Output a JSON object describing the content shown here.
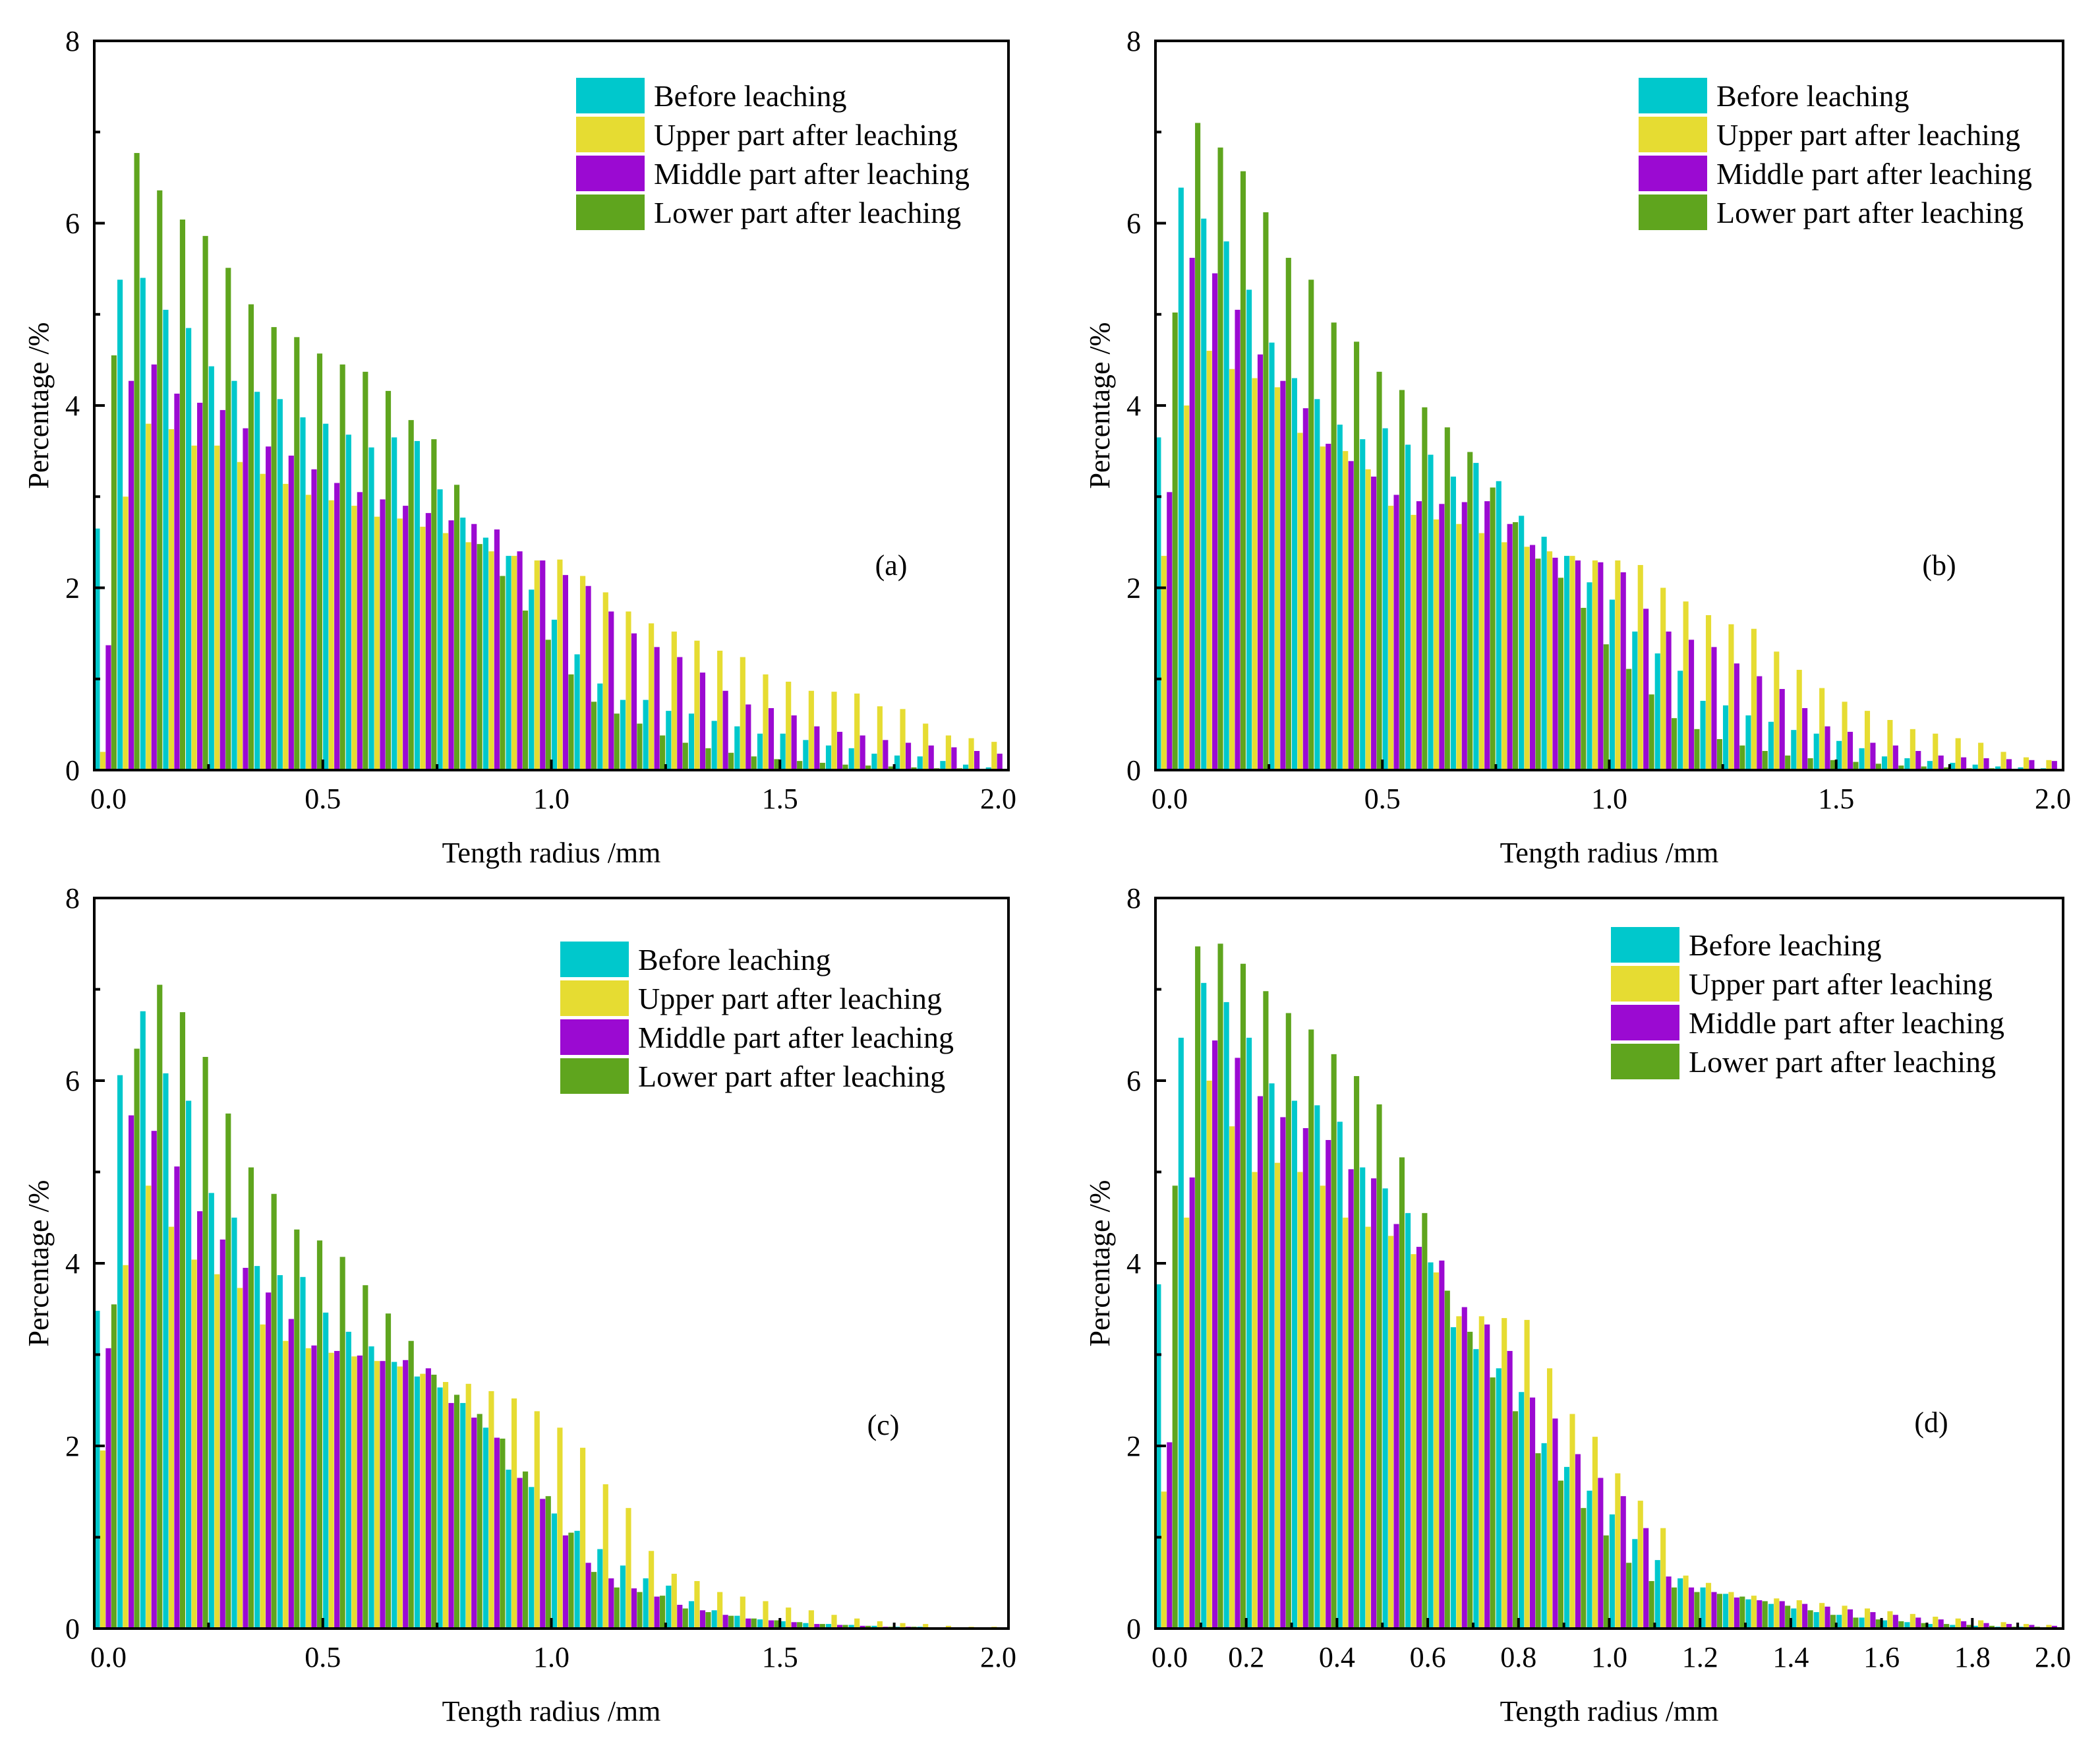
{
  "figure": {
    "colors": {
      "before": "#00c8cc",
      "upper": "#e6dc32",
      "middle": "#9b0ad2",
      "lower": "#5fa51e"
    }
  },
  "chart_data": [
    {
      "type": "bar",
      "panel_label": "(a)",
      "xlabel": "Tength radius /mm",
      "ylabel": "Percentage /%",
      "xlim": [
        0.0,
        2.0
      ],
      "ylim": [
        0,
        8
      ],
      "x_ticks": [
        "0.0",
        "0.5",
        "1.0",
        "1.5",
        "2.0"
      ],
      "y_ticks": [
        "0",
        "2",
        "4",
        "6",
        "8"
      ],
      "legend_position": "top-right",
      "bin_centers": [
        0.025,
        0.075,
        0.125,
        0.175,
        0.225,
        0.275,
        0.325,
        0.375,
        0.425,
        0.475,
        0.525,
        0.575,
        0.625,
        0.675,
        0.725,
        0.775,
        0.825,
        0.875,
        0.925,
        0.975,
        1.025,
        1.075,
        1.125,
        1.175,
        1.225,
        1.275,
        1.325,
        1.375,
        1.425,
        1.475,
        1.525,
        1.575,
        1.625,
        1.675,
        1.725,
        1.775,
        1.825,
        1.875,
        1.925,
        1.975
      ],
      "series": [
        {
          "name": "Before leaching",
          "color_key": "before",
          "values": [
            2.65,
            5.38,
            5.4,
            5.05,
            4.85,
            4.43,
            4.27,
            4.15,
            4.07,
            3.87,
            3.8,
            3.68,
            3.54,
            3.65,
            3.61,
            3.08,
            2.77,
            2.55,
            2.35,
            1.98,
            1.65,
            1.27,
            0.95,
            0.77,
            0.77,
            0.65,
            0.62,
            0.54,
            0.48,
            0.4,
            0.4,
            0.33,
            0.27,
            0.24,
            0.18,
            0.16,
            0.15,
            0.1,
            0.06,
            0.03
          ]
        },
        {
          "name": "Upper part after leaching",
          "color_key": "upper",
          "values": [
            0.2,
            3.0,
            3.8,
            3.74,
            3.56,
            3.56,
            3.38,
            3.25,
            3.14,
            3.02,
            2.96,
            2.9,
            2.78,
            2.76,
            2.67,
            2.6,
            2.5,
            2.4,
            2.35,
            2.3,
            2.31,
            2.13,
            1.95,
            1.74,
            1.61,
            1.52,
            1.42,
            1.31,
            1.24,
            1.05,
            0.97,
            0.87,
            0.86,
            0.84,
            0.7,
            0.67,
            0.51,
            0.38,
            0.35,
            0.31
          ]
        },
        {
          "name": "Middle part after leaching",
          "color_key": "middle",
          "values": [
            1.37,
            4.27,
            4.45,
            4.13,
            4.03,
            3.95,
            3.75,
            3.55,
            3.45,
            3.3,
            3.15,
            3.05,
            2.97,
            2.9,
            2.82,
            2.74,
            2.7,
            2.64,
            2.4,
            2.3,
            2.14,
            2.02,
            1.74,
            1.5,
            1.35,
            1.24,
            1.07,
            0.87,
            0.72,
            0.68,
            0.6,
            0.48,
            0.42,
            0.38,
            0.33,
            0.3,
            0.27,
            0.25,
            0.21,
            0.18
          ]
        },
        {
          "name": "Lower part after leaching",
          "color_key": "lower",
          "values": [
            4.55,
            6.77,
            6.36,
            6.04,
            5.86,
            5.51,
            5.11,
            4.86,
            4.75,
            4.57,
            4.45,
            4.37,
            4.16,
            3.84,
            3.63,
            3.13,
            2.48,
            2.13,
            1.75,
            1.43,
            1.05,
            0.75,
            0.62,
            0.51,
            0.38,
            0.3,
            0.24,
            0.19,
            0.15,
            0.12,
            0.1,
            0.08,
            0.06,
            0.05,
            0.04,
            0.03,
            0.02,
            0.02,
            0.01,
            0.01
          ]
        }
      ]
    },
    {
      "type": "bar",
      "panel_label": "(b)",
      "xlabel": "Tength radius /mm",
      "ylabel": "Percentage /%",
      "xlim": [
        0.0,
        2.0
      ],
      "ylim": [
        0,
        8
      ],
      "x_ticks": [
        "0.0",
        "0.5",
        "1.0",
        "1.5",
        "2.0"
      ],
      "y_ticks": [
        "0",
        "2",
        "4",
        "6",
        "8"
      ],
      "legend_position": "top-right",
      "bin_centers": [
        0.025,
        0.075,
        0.125,
        0.175,
        0.225,
        0.275,
        0.325,
        0.375,
        0.425,
        0.475,
        0.525,
        0.575,
        0.625,
        0.675,
        0.725,
        0.775,
        0.825,
        0.875,
        0.925,
        0.975,
        1.025,
        1.075,
        1.125,
        1.175,
        1.225,
        1.275,
        1.325,
        1.375,
        1.425,
        1.475,
        1.525,
        1.575,
        1.625,
        1.675,
        1.725,
        1.775,
        1.825,
        1.875,
        1.925,
        1.975
      ],
      "series": [
        {
          "name": "Before leaching",
          "color_key": "before",
          "values": [
            3.65,
            6.39,
            6.05,
            5.8,
            5.27,
            4.69,
            4.3,
            4.07,
            3.79,
            3.63,
            3.75,
            3.57,
            3.46,
            3.22,
            3.37,
            3.17,
            2.79,
            2.56,
            2.35,
            2.06,
            1.87,
            1.52,
            1.28,
            1.09,
            0.76,
            0.71,
            0.6,
            0.53,
            0.44,
            0.4,
            0.32,
            0.24,
            0.15,
            0.13,
            0.1,
            0.08,
            0.06,
            0.04,
            0.03,
            0.02
          ]
        },
        {
          "name": "Upper part after leaching",
          "color_key": "upper",
          "values": [
            2.35,
            4.0,
            4.6,
            4.4,
            4.3,
            4.2,
            3.7,
            3.55,
            3.5,
            3.3,
            2.9,
            2.8,
            2.75,
            2.7,
            2.6,
            2.5,
            2.45,
            2.4,
            2.35,
            2.3,
            2.3,
            2.25,
            2.0,
            1.85,
            1.7,
            1.6,
            1.55,
            1.3,
            1.1,
            0.9,
            0.75,
            0.65,
            0.55,
            0.45,
            0.4,
            0.35,
            0.3,
            0.2,
            0.14,
            0.11
          ]
        },
        {
          "name": "Middle part after leaching",
          "color_key": "middle",
          "values": [
            3.05,
            5.62,
            5.45,
            5.05,
            4.56,
            4.27,
            3.97,
            3.58,
            3.39,
            3.22,
            3.02,
            2.95,
            2.92,
            2.94,
            2.95,
            2.7,
            2.47,
            2.33,
            2.3,
            2.28,
            2.17,
            1.77,
            1.52,
            1.43,
            1.35,
            1.17,
            1.03,
            0.89,
            0.68,
            0.48,
            0.42,
            0.3,
            0.27,
            0.21,
            0.16,
            0.14,
            0.13,
            0.12,
            0.11,
            0.1
          ]
        },
        {
          "name": "Lower part after leaching",
          "color_key": "lower",
          "values": [
            5.02,
            7.1,
            6.83,
            6.57,
            6.12,
            5.62,
            5.38,
            4.91,
            4.7,
            4.37,
            4.17,
            3.98,
            3.76,
            3.49,
            3.1,
            2.72,
            2.32,
            2.11,
            1.78,
            1.38,
            1.11,
            0.83,
            0.57,
            0.45,
            0.34,
            0.27,
            0.21,
            0.16,
            0.13,
            0.11,
            0.09,
            0.07,
            0.05,
            0.04,
            0.03,
            0.02,
            0.02,
            0.01,
            0.01,
            0.01
          ]
        }
      ]
    },
    {
      "type": "bar",
      "panel_label": "(c)",
      "xlabel": "Tength radius /mm",
      "ylabel": "Percentage /%",
      "xlim": [
        0.0,
        2.0
      ],
      "ylim": [
        0,
        8
      ],
      "x_ticks": [
        "0.0",
        "0.5",
        "1.0",
        "1.5",
        "2.0"
      ],
      "y_ticks": [
        "0",
        "2",
        "4",
        "6",
        "8"
      ],
      "legend_position": "top-right",
      "bin_centers": [
        0.025,
        0.075,
        0.125,
        0.175,
        0.225,
        0.275,
        0.325,
        0.375,
        0.425,
        0.475,
        0.525,
        0.575,
        0.625,
        0.675,
        0.725,
        0.775,
        0.825,
        0.875,
        0.925,
        0.975,
        1.025,
        1.075,
        1.125,
        1.175,
        1.225,
        1.275,
        1.325,
        1.375,
        1.425,
        1.475,
        1.525,
        1.575,
        1.625,
        1.675,
        1.725,
        1.775,
        1.825,
        1.875,
        1.925,
        1.975
      ],
      "series": [
        {
          "name": "Before leaching",
          "color_key": "before",
          "values": [
            3.48,
            6.06,
            6.76,
            6.08,
            5.78,
            4.77,
            4.5,
            3.97,
            3.87,
            3.85,
            3.46,
            3.25,
            3.09,
            2.92,
            2.76,
            2.64,
            2.47,
            2.2,
            1.74,
            1.55,
            1.26,
            1.07,
            0.87,
            0.69,
            0.55,
            0.47,
            0.3,
            0.2,
            0.14,
            0.1,
            0.08,
            0.06,
            0.05,
            0.04,
            0.03,
            0.02,
            0.02,
            0.01,
            0.01,
            0.01
          ]
        },
        {
          "name": "Upper part after leaching",
          "color_key": "upper",
          "values": [
            1.95,
            3.98,
            4.85,
            4.4,
            4.04,
            3.88,
            3.73,
            3.33,
            3.15,
            3.07,
            3.02,
            2.98,
            2.93,
            2.87,
            2.79,
            2.7,
            2.68,
            2.6,
            2.52,
            2.38,
            2.2,
            1.98,
            1.58,
            1.32,
            0.85,
            0.6,
            0.52,
            0.4,
            0.35,
            0.3,
            0.23,
            0.2,
            0.15,
            0.11,
            0.08,
            0.06,
            0.05,
            0.03,
            0.02,
            0.02
          ]
        },
        {
          "name": "Middle part after leaching",
          "color_key": "middle",
          "values": [
            3.07,
            5.62,
            5.45,
            5.06,
            4.57,
            4.26,
            3.95,
            3.68,
            3.39,
            3.1,
            3.04,
            2.99,
            2.93,
            2.94,
            2.85,
            2.47,
            2.31,
            2.09,
            1.65,
            1.42,
            1.02,
            0.72,
            0.55,
            0.44,
            0.35,
            0.26,
            0.2,
            0.15,
            0.11,
            0.09,
            0.07,
            0.05,
            0.04,
            0.03,
            0.02,
            0.02,
            0.01,
            0.01,
            0.01,
            0.01
          ]
        },
        {
          "name": "Lower part after leaching",
          "color_key": "lower",
          "values": [
            3.55,
            6.35,
            7.05,
            6.75,
            6.26,
            5.64,
            5.05,
            4.76,
            4.37,
            4.25,
            4.07,
            3.76,
            3.45,
            3.15,
            2.78,
            2.56,
            2.35,
            2.08,
            1.72,
            1.45,
            1.05,
            0.62,
            0.45,
            0.4,
            0.36,
            0.22,
            0.18,
            0.14,
            0.11,
            0.09,
            0.07,
            0.05,
            0.04,
            0.03,
            0.02,
            0.02,
            0.01,
            0.01,
            0.01,
            0.01
          ]
        }
      ]
    },
    {
      "type": "bar",
      "panel_label": "(d)",
      "xlabel": "Tength radius /mm",
      "ylabel": "Percentage /%",
      "xlim": [
        0.0,
        2.0
      ],
      "ylim": [
        0,
        8
      ],
      "x_ticks": [
        "0.0",
        "0.2",
        "0.4",
        "0.6",
        "0.8",
        "1.0",
        "1.2",
        "1.4",
        "1.6",
        "1.8",
        "2.0"
      ],
      "y_ticks": [
        "0",
        "2",
        "4",
        "6",
        "8"
      ],
      "legend_position": "top-right",
      "bin_centers": [
        0.025,
        0.075,
        0.125,
        0.175,
        0.225,
        0.275,
        0.325,
        0.375,
        0.425,
        0.475,
        0.525,
        0.575,
        0.625,
        0.675,
        0.725,
        0.775,
        0.825,
        0.875,
        0.925,
        0.975,
        1.025,
        1.075,
        1.125,
        1.175,
        1.225,
        1.275,
        1.325,
        1.375,
        1.425,
        1.475,
        1.525,
        1.575,
        1.625,
        1.675,
        1.725,
        1.775,
        1.825,
        1.875,
        1.925,
        1.975
      ],
      "series": [
        {
          "name": "Before leaching",
          "color_key": "before",
          "values": [
            3.77,
            6.47,
            7.07,
            6.86,
            6.47,
            5.97,
            5.78,
            5.73,
            5.55,
            5.05,
            4.82,
            4.55,
            4.01,
            3.3,
            3.06,
            2.85,
            2.59,
            2.03,
            1.77,
            1.51,
            1.25,
            0.98,
            0.75,
            0.55,
            0.45,
            0.38,
            0.32,
            0.27,
            0.22,
            0.18,
            0.15,
            0.12,
            0.09,
            0.07,
            0.05,
            0.04,
            0.03,
            0.02,
            0.02,
            0.01
          ]
        },
        {
          "name": "Upper part after leaching",
          "color_key": "upper",
          "values": [
            1.5,
            4.5,
            6.0,
            5.5,
            5.0,
            5.1,
            5.0,
            4.85,
            4.5,
            4.4,
            4.3,
            4.1,
            3.9,
            3.42,
            3.42,
            3.4,
            3.38,
            2.85,
            2.35,
            2.1,
            1.7,
            1.4,
            1.1,
            0.58,
            0.5,
            0.4,
            0.36,
            0.33,
            0.31,
            0.28,
            0.25,
            0.22,
            0.19,
            0.16,
            0.13,
            0.11,
            0.09,
            0.07,
            0.05,
            0.04
          ]
        },
        {
          "name": "Middle part after leaching",
          "color_key": "middle",
          "values": [
            2.04,
            4.94,
            6.44,
            6.25,
            5.83,
            5.6,
            5.48,
            5.35,
            5.03,
            4.93,
            4.43,
            4.18,
            4.03,
            3.52,
            3.33,
            3.04,
            2.53,
            2.3,
            1.91,
            1.65,
            1.45,
            1.1,
            0.57,
            0.45,
            0.4,
            0.34,
            0.31,
            0.3,
            0.27,
            0.24,
            0.21,
            0.18,
            0.15,
            0.12,
            0.1,
            0.08,
            0.06,
            0.05,
            0.04,
            0.03
          ]
        },
        {
          "name": "Lower part after leaching",
          "color_key": "lower",
          "values": [
            4.85,
            7.47,
            7.5,
            7.28,
            6.98,
            6.74,
            6.56,
            6.29,
            6.05,
            5.74,
            5.16,
            4.55,
            3.7,
            3.25,
            2.75,
            2.38,
            1.92,
            1.62,
            1.32,
            1.02,
            0.72,
            0.52,
            0.45,
            0.4,
            0.38,
            0.35,
            0.3,
            0.25,
            0.2,
            0.15,
            0.12,
            0.1,
            0.08,
            0.06,
            0.05,
            0.04,
            0.03,
            0.02,
            0.02,
            0.01
          ]
        }
      ]
    }
  ]
}
